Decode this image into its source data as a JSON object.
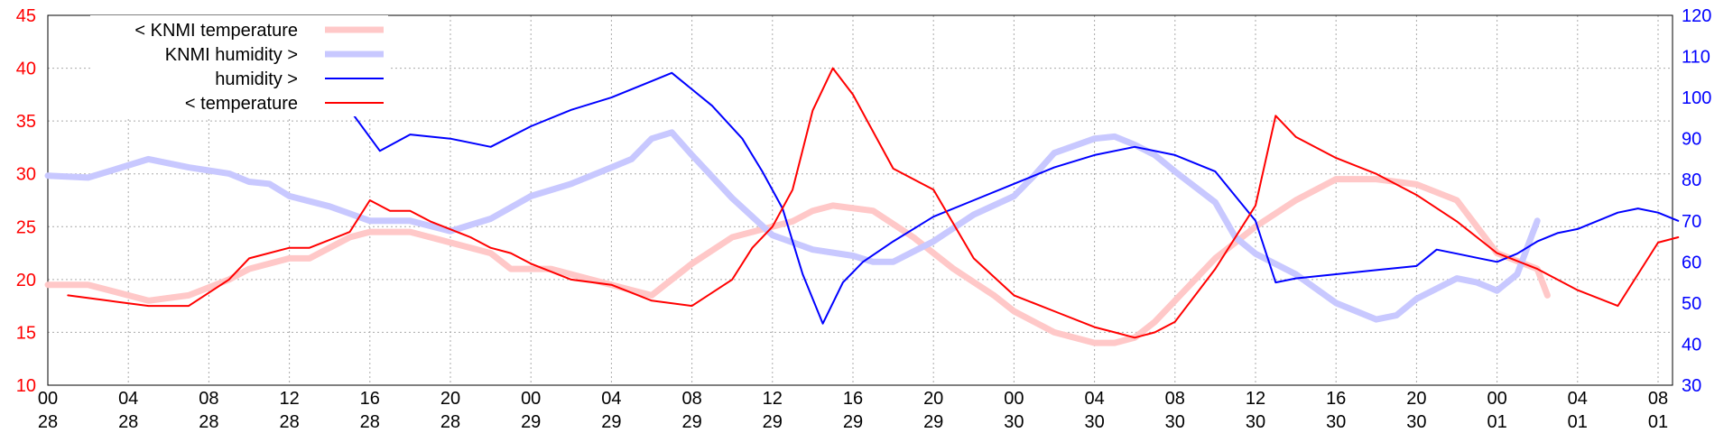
{
  "chart_data": {
    "type": "line",
    "title": "",
    "y_left": {
      "ylim": [
        10,
        45
      ],
      "ticks": [
        "10",
        "15",
        "20",
        "25",
        "30",
        "35",
        "40",
        "45"
      ],
      "color": "#ff0000"
    },
    "y_right": {
      "ylim": [
        30,
        120
      ],
      "ticks": [
        "30",
        "40",
        "50",
        "60",
        "70",
        "80",
        "90",
        "100",
        "110",
        "120"
      ],
      "color": "#0000ff"
    },
    "x_ticks": [
      {
        "hour": "00",
        "day": "28"
      },
      {
        "hour": "04",
        "day": "28"
      },
      {
        "hour": "08",
        "day": "28"
      },
      {
        "hour": "12",
        "day": "28"
      },
      {
        "hour": "16",
        "day": "28"
      },
      {
        "hour": "20",
        "day": "28"
      },
      {
        "hour": "00",
        "day": "29"
      },
      {
        "hour": "04",
        "day": "29"
      },
      {
        "hour": "08",
        "day": "29"
      },
      {
        "hour": "12",
        "day": "29"
      },
      {
        "hour": "16",
        "day": "29"
      },
      {
        "hour": "20",
        "day": "29"
      },
      {
        "hour": "00",
        "day": "30"
      },
      {
        "hour": "04",
        "day": "30"
      },
      {
        "hour": "08",
        "day": "30"
      },
      {
        "hour": "12",
        "day": "30"
      },
      {
        "hour": "16",
        "day": "30"
      },
      {
        "hour": "20",
        "day": "30"
      },
      {
        "hour": "00",
        "day": "01"
      },
      {
        "hour": "04",
        "day": "01"
      },
      {
        "hour": "08",
        "day": "01"
      }
    ],
    "grid": true,
    "legend_position": "top-left",
    "series": [
      {
        "name": "< KNMI temperature",
        "axis": "left",
        "color": "#ffc8c8",
        "style": "thick",
        "x": [
          "28 00:00",
          "28 02:00",
          "28 04:00",
          "28 05:00",
          "28 07:00",
          "28 09:00",
          "28 10:00",
          "28 12:00",
          "28 13:00",
          "28 15:00",
          "28 16:00",
          "28 18:00",
          "28 20:00",
          "28 22:00",
          "28 23:00",
          "29 01:00",
          "29 02:00",
          "29 04:00",
          "29 05:00",
          "29 06:00",
          "29 08:00",
          "29 10:00",
          "29 12:00",
          "29 13:00",
          "29 14:00",
          "29 15:00",
          "29 17:00",
          "29 19:00",
          "29 21:00",
          "29 23:00",
          "30 00:00",
          "30 01:00",
          "30 02:00",
          "30 03:00",
          "30 04:00",
          "30 05:00",
          "30 06:00",
          "30 07:00",
          "30 08:00",
          "30 10:00",
          "30 12:00",
          "30 14:00",
          "30 16:00",
          "30 18:00",
          "30 20:00",
          "30 22:00",
          "01 00:00",
          "01 02:00",
          "01 02:30"
        ],
        "values": [
          19.5,
          19.5,
          18.5,
          18,
          18.5,
          20,
          21,
          22,
          22,
          24,
          24.5,
          24.5,
          23.5,
          22.5,
          21,
          21,
          20.5,
          19.5,
          19,
          18.5,
          21.5,
          24,
          25,
          25.5,
          26.5,
          27,
          26.5,
          24,
          21,
          18.5,
          17,
          16,
          15,
          14.5,
          14,
          14,
          14.5,
          16,
          18,
          22,
          25,
          27.5,
          29.5,
          29.5,
          29,
          27.5,
          22.5,
          21,
          18.5
        ]
      },
      {
        "name": "KNMI humidity >",
        "axis": "right",
        "color": "#c8c8ff",
        "style": "thick",
        "x": [
          "28 00:00",
          "28 02:00",
          "28 03:00",
          "28 05:00",
          "28 07:00",
          "28 09:00",
          "28 10:00",
          "28 11:00",
          "28 12:00",
          "28 14:00",
          "28 16:00",
          "28 17:00",
          "28 18:00",
          "28 20:00",
          "28 22:00",
          "29 00:00",
          "29 01:00",
          "29 02:00",
          "29 04:00",
          "29 05:00",
          "29 06:00",
          "29 07:00",
          "29 08:00",
          "29 10:00",
          "29 12:00",
          "29 14:00",
          "29 16:00",
          "29 17:00",
          "29 18:00",
          "29 20:00",
          "29 22:00",
          "30 00:00",
          "30 01:00",
          "30 02:00",
          "30 04:00",
          "30 05:00",
          "30 06:00",
          "30 07:00",
          "30 08:00",
          "30 10:00",
          "30 11:00",
          "30 12:00",
          "30 14:00",
          "30 16:00",
          "30 18:00",
          "30 19:00",
          "30 20:00",
          "30 22:00",
          "30 23:00",
          "01 00:00",
          "01 01:00",
          "01 02:00"
        ],
        "values": [
          81,
          80.5,
          82,
          85,
          83,
          81.5,
          79.5,
          79,
          76,
          73.5,
          70,
          70,
          70,
          67.5,
          70.5,
          76,
          77.5,
          79,
          83,
          85,
          90,
          91.5,
          86,
          75.5,
          66.5,
          63,
          61.5,
          60,
          60,
          65,
          71.5,
          76,
          81,
          86.5,
          90,
          90.5,
          88.5,
          86,
          82,
          74.5,
          66,
          62,
          57,
          50,
          46,
          47,
          51,
          56,
          55,
          53,
          57,
          70
        ]
      },
      {
        "name": "humidity >",
        "axis": "right",
        "color": "#0000ff",
        "style": "thin",
        "x": [
          "28 15:00",
          "28 16:30",
          "28 18:00",
          "28 20:00",
          "28 22:00",
          "29 00:00",
          "29 02:00",
          "29 04:00",
          "29 06:00",
          "29 07:00",
          "29 09:00",
          "29 10:30",
          "29 11:30",
          "29 12:30",
          "29 13:30",
          "29 14:30",
          "29 15:30",
          "29 16:30",
          "29 18:00",
          "29 20:00",
          "29 22:00",
          "30 00:00",
          "30 02:00",
          "30 04:00",
          "30 06:00",
          "30 08:00",
          "30 10:00",
          "30 12:00",
          "30 13:00",
          "30 14:00",
          "30 16:00",
          "30 18:00",
          "30 20:00",
          "30 21:00",
          "30 22:00",
          "30 23:00",
          "01 00:00",
          "01 01:00",
          "01 02:00",
          "01 03:00",
          "01 04:00",
          "01 05:00",
          "01 06:00",
          "01 07:00",
          "01 08:00",
          "01 09:00"
        ],
        "values": [
          97,
          87,
          91,
          90,
          88,
          93,
          97,
          100,
          104,
          106,
          98,
          90,
          82,
          73,
          57,
          45,
          55,
          60,
          65,
          71,
          75,
          79,
          83,
          86,
          88,
          86,
          82,
          70,
          55,
          56,
          57,
          58,
          59,
          63,
          62,
          61,
          60,
          62,
          65,
          67,
          68,
          70,
          72,
          73,
          72,
          70
        ]
      },
      {
        "name": "< temperature",
        "axis": "left",
        "color": "#ff0000",
        "style": "thin",
        "x": [
          "28 01:00",
          "28 03:00",
          "28 05:00",
          "28 07:00",
          "28 09:00",
          "28 10:00",
          "28 12:00",
          "28 13:00",
          "28 15:00",
          "28 16:00",
          "28 17:00",
          "28 18:00",
          "28 19:00",
          "28 21:00",
          "28 22:00",
          "28 23:00",
          "29 00:00",
          "29 02:00",
          "29 04:00",
          "29 06:00",
          "29 08:00",
          "29 10:00",
          "29 11:00",
          "29 12:00",
          "29 13:00",
          "29 14:00",
          "29 15:00",
          "29 16:00",
          "29 18:00",
          "29 20:00",
          "29 22:00",
          "30 00:00",
          "30 02:00",
          "30 04:00",
          "30 05:00",
          "30 06:00",
          "30 07:00",
          "30 08:00",
          "30 10:00",
          "30 12:00",
          "30 13:00",
          "30 14:00",
          "30 16:00",
          "30 18:00",
          "30 20:00",
          "30 22:00",
          "01 00:00",
          "01 02:00",
          "01 04:00",
          "01 06:00",
          "01 08:00",
          "01 09:00"
        ],
        "values": [
          18.5,
          18,
          17.5,
          17.5,
          20,
          22,
          23,
          23,
          24.5,
          27.5,
          26.5,
          26.5,
          25.5,
          24,
          23,
          22.5,
          21.5,
          20,
          19.5,
          18,
          17.5,
          20,
          23,
          25,
          28.5,
          36,
          40,
          37.5,
          30.5,
          28.5,
          22,
          18.5,
          17,
          15.5,
          15,
          14.5,
          15,
          16,
          21,
          27,
          35.5,
          33.5,
          31.5,
          30,
          28,
          25.5,
          22.5,
          21,
          19,
          17.5,
          23.5,
          24
        ]
      }
    ]
  }
}
